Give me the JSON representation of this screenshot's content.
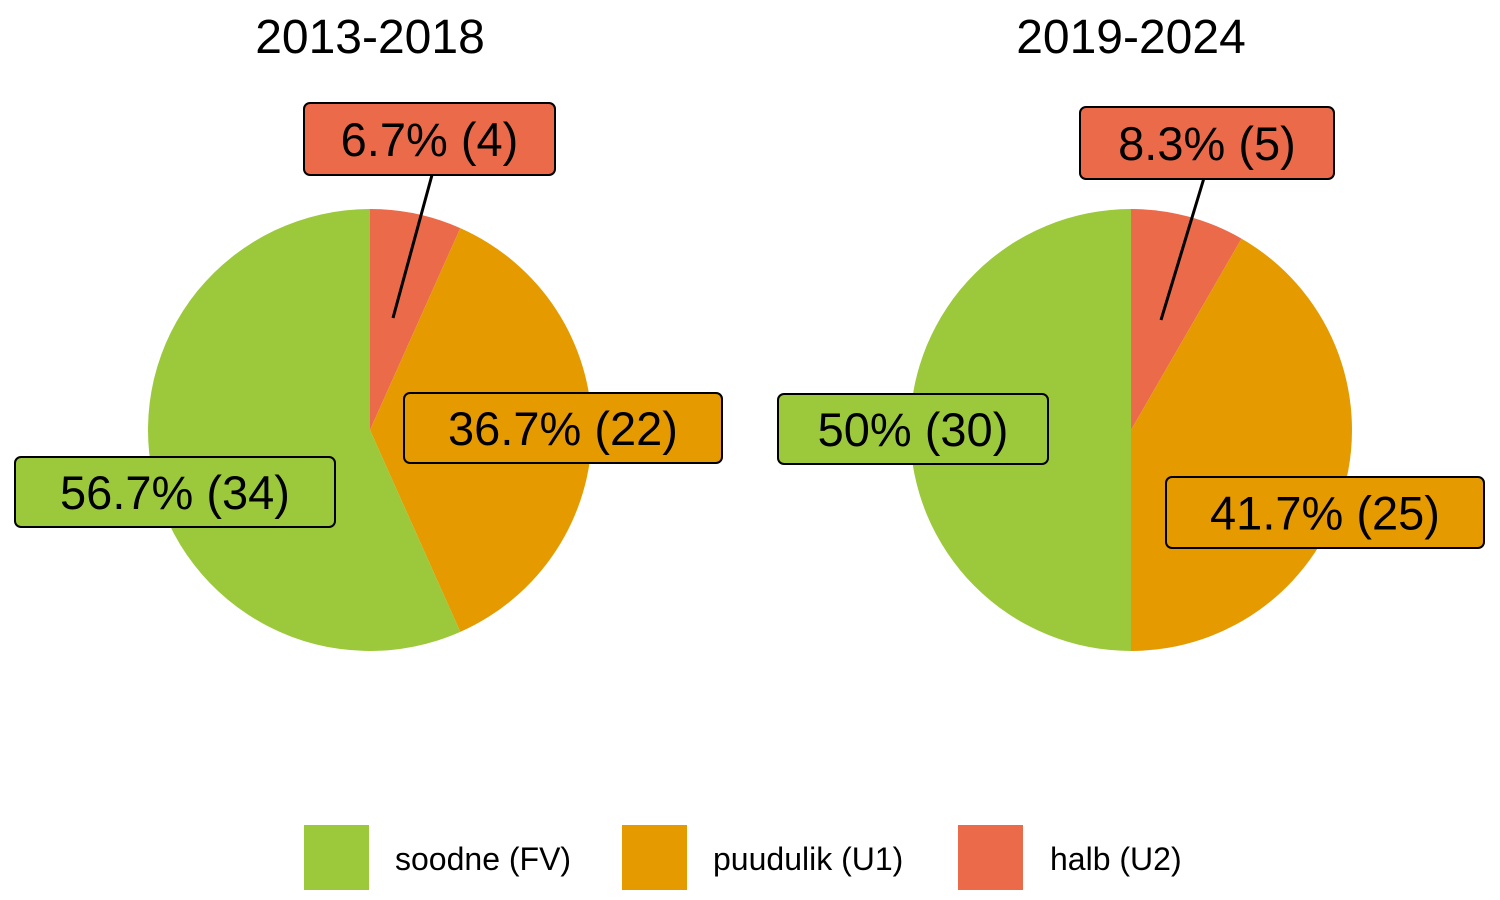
{
  "chart_data": [
    {
      "type": "pie",
      "title": "2013-2018",
      "categories": [
        "soodne (FV)",
        "puudulik (U1)",
        "halb (U2)"
      ],
      "values": [
        34,
        22,
        4
      ],
      "labels": [
        "56.7% (34)",
        "36.7% (22)",
        "6.7% (4)"
      ],
      "colors": [
        "#9BC93B",
        "#E59A00",
        "#EA6A4A"
      ]
    },
    {
      "type": "pie",
      "title": "2019-2024",
      "categories": [
        "soodne (FV)",
        "puudulik (U1)",
        "halb (U2)"
      ],
      "values": [
        30,
        25,
        5
      ],
      "labels": [
        "50% (30)",
        "41.7% (25)",
        "8.3% (5)"
      ],
      "colors": [
        "#9BC93B",
        "#E59A00",
        "#EA6A4A"
      ]
    }
  ],
  "legend": {
    "position": "bottom",
    "items": [
      {
        "label": "soodne (FV)",
        "color": "#9BC93B"
      },
      {
        "label": "puudulik (U1)",
        "color": "#E59A00"
      },
      {
        "label": "halb (U2)",
        "color": "#EA6A4A"
      }
    ]
  }
}
